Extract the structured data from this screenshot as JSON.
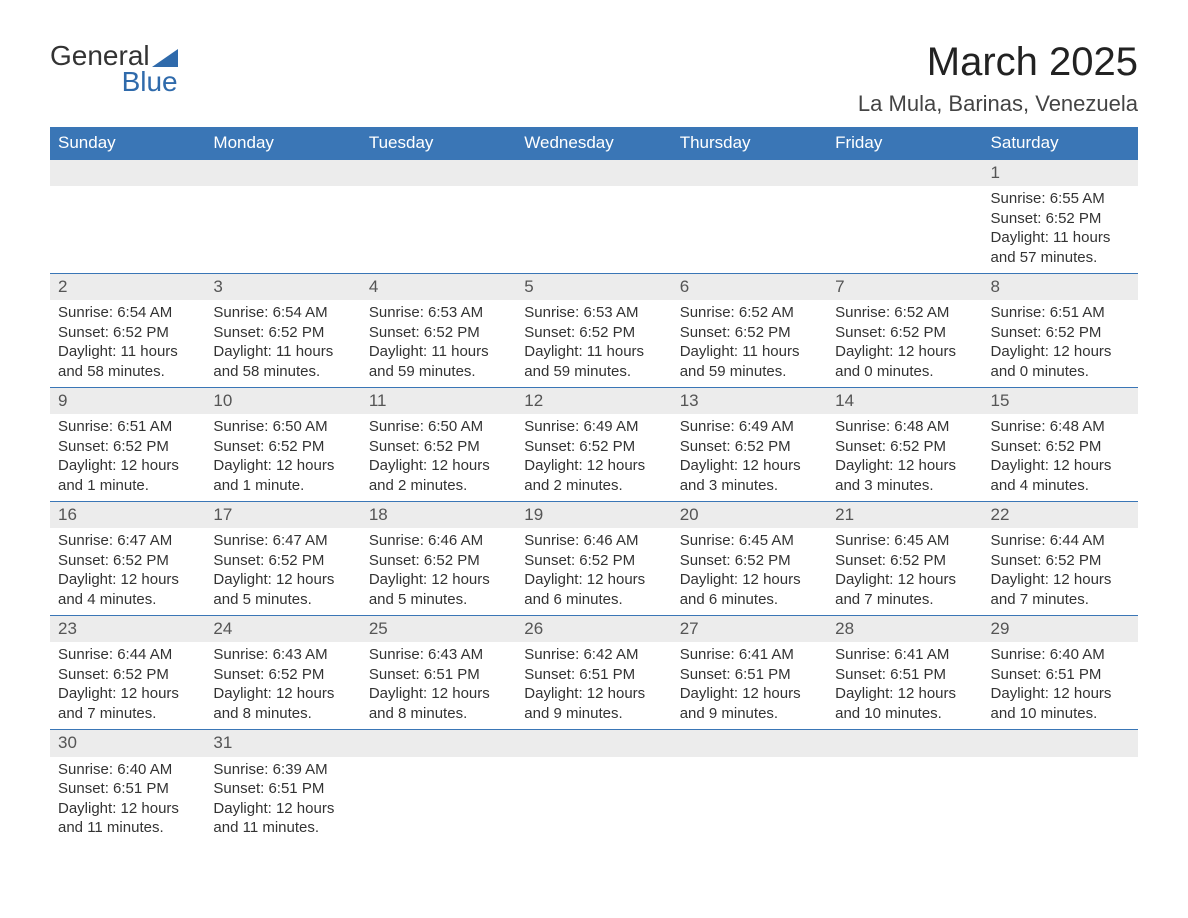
{
  "brand": {
    "text1": "General",
    "text2": "Blue"
  },
  "title": {
    "month": "March 2025",
    "location": "La Mula, Barinas, Venezuela"
  },
  "colors": {
    "header_bg": "#3a76b6",
    "header_fg": "#ffffff",
    "daynum_bg": "#ececec",
    "border": "#3a76b6",
    "brand_accent": "#2f6aab"
  },
  "weekdays": [
    "Sunday",
    "Monday",
    "Tuesday",
    "Wednesday",
    "Thursday",
    "Friday",
    "Saturday"
  ],
  "weeks": [
    [
      null,
      null,
      null,
      null,
      null,
      null,
      {
        "n": "1",
        "sunrise": "6:55 AM",
        "sunset": "6:52 PM",
        "daylight": "11 hours and 57 minutes."
      }
    ],
    [
      {
        "n": "2",
        "sunrise": "6:54 AM",
        "sunset": "6:52 PM",
        "daylight": "11 hours and 58 minutes."
      },
      {
        "n": "3",
        "sunrise": "6:54 AM",
        "sunset": "6:52 PM",
        "daylight": "11 hours and 58 minutes."
      },
      {
        "n": "4",
        "sunrise": "6:53 AM",
        "sunset": "6:52 PM",
        "daylight": "11 hours and 59 minutes."
      },
      {
        "n": "5",
        "sunrise": "6:53 AM",
        "sunset": "6:52 PM",
        "daylight": "11 hours and 59 minutes."
      },
      {
        "n": "6",
        "sunrise": "6:52 AM",
        "sunset": "6:52 PM",
        "daylight": "11 hours and 59 minutes."
      },
      {
        "n": "7",
        "sunrise": "6:52 AM",
        "sunset": "6:52 PM",
        "daylight": "12 hours and 0 minutes."
      },
      {
        "n": "8",
        "sunrise": "6:51 AM",
        "sunset": "6:52 PM",
        "daylight": "12 hours and 0 minutes."
      }
    ],
    [
      {
        "n": "9",
        "sunrise": "6:51 AM",
        "sunset": "6:52 PM",
        "daylight": "12 hours and 1 minute."
      },
      {
        "n": "10",
        "sunrise": "6:50 AM",
        "sunset": "6:52 PM",
        "daylight": "12 hours and 1 minute."
      },
      {
        "n": "11",
        "sunrise": "6:50 AM",
        "sunset": "6:52 PM",
        "daylight": "12 hours and 2 minutes."
      },
      {
        "n": "12",
        "sunrise": "6:49 AM",
        "sunset": "6:52 PM",
        "daylight": "12 hours and 2 minutes."
      },
      {
        "n": "13",
        "sunrise": "6:49 AM",
        "sunset": "6:52 PM",
        "daylight": "12 hours and 3 minutes."
      },
      {
        "n": "14",
        "sunrise": "6:48 AM",
        "sunset": "6:52 PM",
        "daylight": "12 hours and 3 minutes."
      },
      {
        "n": "15",
        "sunrise": "6:48 AM",
        "sunset": "6:52 PM",
        "daylight": "12 hours and 4 minutes."
      }
    ],
    [
      {
        "n": "16",
        "sunrise": "6:47 AM",
        "sunset": "6:52 PM",
        "daylight": "12 hours and 4 minutes."
      },
      {
        "n": "17",
        "sunrise": "6:47 AM",
        "sunset": "6:52 PM",
        "daylight": "12 hours and 5 minutes."
      },
      {
        "n": "18",
        "sunrise": "6:46 AM",
        "sunset": "6:52 PM",
        "daylight": "12 hours and 5 minutes."
      },
      {
        "n": "19",
        "sunrise": "6:46 AM",
        "sunset": "6:52 PM",
        "daylight": "12 hours and 6 minutes."
      },
      {
        "n": "20",
        "sunrise": "6:45 AM",
        "sunset": "6:52 PM",
        "daylight": "12 hours and 6 minutes."
      },
      {
        "n": "21",
        "sunrise": "6:45 AM",
        "sunset": "6:52 PM",
        "daylight": "12 hours and 7 minutes."
      },
      {
        "n": "22",
        "sunrise": "6:44 AM",
        "sunset": "6:52 PM",
        "daylight": "12 hours and 7 minutes."
      }
    ],
    [
      {
        "n": "23",
        "sunrise": "6:44 AM",
        "sunset": "6:52 PM",
        "daylight": "12 hours and 7 minutes."
      },
      {
        "n": "24",
        "sunrise": "6:43 AM",
        "sunset": "6:52 PM",
        "daylight": "12 hours and 8 minutes."
      },
      {
        "n": "25",
        "sunrise": "6:43 AM",
        "sunset": "6:51 PM",
        "daylight": "12 hours and 8 minutes."
      },
      {
        "n": "26",
        "sunrise": "6:42 AM",
        "sunset": "6:51 PM",
        "daylight": "12 hours and 9 minutes."
      },
      {
        "n": "27",
        "sunrise": "6:41 AM",
        "sunset": "6:51 PM",
        "daylight": "12 hours and 9 minutes."
      },
      {
        "n": "28",
        "sunrise": "6:41 AM",
        "sunset": "6:51 PM",
        "daylight": "12 hours and 10 minutes."
      },
      {
        "n": "29",
        "sunrise": "6:40 AM",
        "sunset": "6:51 PM",
        "daylight": "12 hours and 10 minutes."
      }
    ],
    [
      {
        "n": "30",
        "sunrise": "6:40 AM",
        "sunset": "6:51 PM",
        "daylight": "12 hours and 11 minutes."
      },
      {
        "n": "31",
        "sunrise": "6:39 AM",
        "sunset": "6:51 PM",
        "daylight": "12 hours and 11 minutes."
      },
      null,
      null,
      null,
      null,
      null
    ]
  ],
  "labels": {
    "sunrise": "Sunrise: ",
    "sunset": "Sunset: ",
    "daylight": "Daylight: "
  }
}
